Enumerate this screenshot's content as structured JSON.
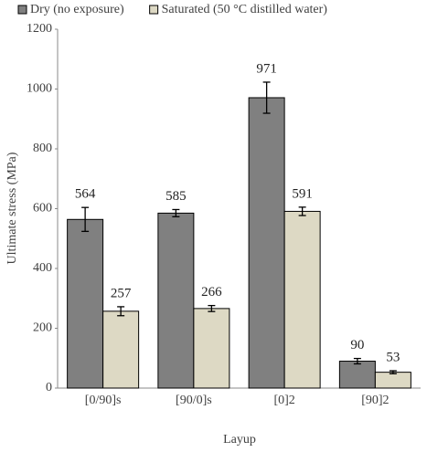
{
  "chart_data": {
    "type": "bar",
    "categories": [
      "[0/90]s",
      "[90/0]s",
      "[0]2",
      "[90]2"
    ],
    "series": [
      {
        "name": "Dry (no exposure)",
        "color": "#808080",
        "values": [
          564,
          585,
          971,
          90
        ],
        "errors": [
          40,
          12,
          52,
          9
        ]
      },
      {
        "name": "Saturated (50 °C distilled water)",
        "color": "#ddd9c4",
        "values": [
          257,
          266,
          591,
          53
        ],
        "errors": [
          15,
          10,
          14,
          5
        ]
      }
    ],
    "x_label": "Layup",
    "y_label": "Ultimate stress (MPa)",
    "ylim": [
      0,
      1200
    ],
    "yticks": [
      0,
      200,
      400,
      600,
      800,
      1000,
      1200
    ],
    "grid": false,
    "legend": "top"
  }
}
